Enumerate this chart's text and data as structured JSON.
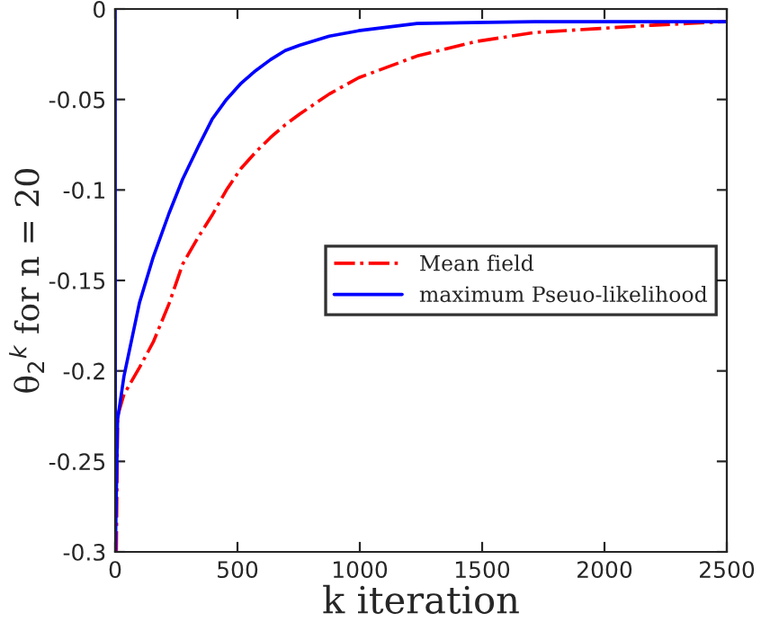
{
  "chart_data": {
    "type": "line",
    "xlabel": "k iteration",
    "ylabel": "θ$_{2}$$^{k}$ for n = 20",
    "xlim": [
      0,
      2500
    ],
    "ylim": [
      -0.3,
      0
    ],
    "xticks": [
      0,
      500,
      1000,
      1500,
      2000,
      2500
    ],
    "yticks": [
      -0.3,
      -0.25,
      -0.2,
      -0.15,
      -0.1,
      -0.05,
      0
    ],
    "grid": false,
    "legend": "right",
    "marker": "none",
    "series": [
      {
        "name": "Mean field",
        "color": "#ff0000",
        "line_style": "dashdot",
        "x": [
          5,
          10,
          36,
          100,
          156,
          220,
          276,
          340,
          396,
          455,
          515,
          575,
          635,
          695,
          755,
          875,
          995,
          1115,
          1234,
          1354,
          1474,
          1714,
          1954,
          2193,
          2500
        ],
        "values": [
          -0.3,
          -0.225,
          -0.213,
          -0.198,
          -0.184,
          -0.163,
          -0.141,
          -0.126,
          -0.114,
          -0.1,
          -0.088,
          -0.079,
          -0.071,
          -0.064,
          -0.058,
          -0.047,
          -0.038,
          -0.032,
          -0.026,
          -0.022,
          -0.018,
          -0.013,
          -0.011,
          -0.009,
          -0.007
        ]
      },
      {
        "name": "maximum Pseuo-likelihood",
        "color": "#0000ff",
        "line_style": "solid",
        "x": [
          0,
          1,
          10,
          36,
          100,
          156,
          220,
          276,
          340,
          396,
          455,
          515,
          575,
          635,
          695,
          755,
          875,
          995,
          1234,
          1714,
          2500
        ],
        "values": [
          0,
          -0.3,
          -0.227,
          -0.203,
          -0.162,
          -0.137,
          -0.113,
          -0.094,
          -0.076,
          -0.061,
          -0.05,
          -0.041,
          -0.034,
          -0.028,
          -0.023,
          -0.02,
          -0.015,
          -0.012,
          -0.008,
          -0.007,
          -0.007
        ]
      }
    ]
  }
}
